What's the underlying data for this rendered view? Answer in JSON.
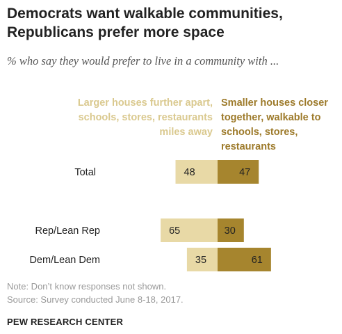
{
  "title": "Democrats want walkable communities, Republicans prefer more space",
  "subtitle": "% who say they would prefer to live in a community with ...",
  "legend_left": "Larger houses further apart, schools, stores, restaurants miles away",
  "legend_right": "Smaller houses closer together, walkable to schools, stores, restaurants",
  "note": "Note: Don’t know responses not shown.",
  "source": "Source: Survey conducted June 8-18, 2017.",
  "brand": "PEW RESEARCH CENTER",
  "colors": {
    "larger": "#e8d9a6",
    "smaller": "#a6852e",
    "text": "#222222",
    "note": "#999999"
  },
  "chart_data": {
    "type": "bar",
    "orientation": "horizontal",
    "layout": "diverging",
    "categories": [
      "Total",
      "Rep/Lean Rep",
      "Dem/Lean Dem"
    ],
    "series": [
      {
        "name": "Larger houses further apart, schools, stores, restaurants miles away",
        "values": [
          48,
          65,
          35
        ]
      },
      {
        "name": "Smaller houses closer together, walkable to schools, stores, restaurants",
        "values": [
          47,
          30,
          61
        ]
      }
    ]
  }
}
